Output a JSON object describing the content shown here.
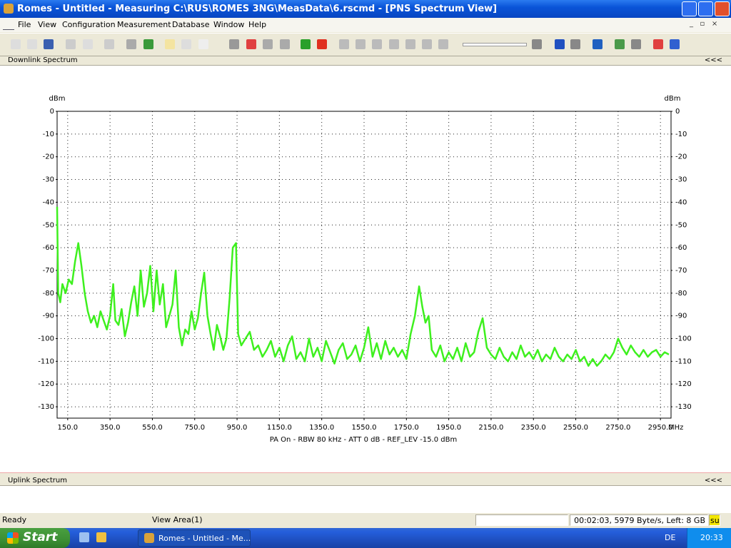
{
  "window": {
    "title": "Romes - Untitled - Measuring C:\\RUS\\ROMES 3NG\\MeasData\\6.rscmd - [PNS Spectrum View]"
  },
  "menu": [
    "File",
    "View",
    "Configuration",
    "Measurement",
    "Database",
    "Window",
    "Help"
  ],
  "panels": {
    "downlink": "Downlink Spectrum",
    "uplink": "Uplink Spectrum",
    "collapse": "<<<"
  },
  "chart_data": {
    "type": "line",
    "ylabel": "dBm",
    "y2label": "dBm",
    "xunit": "MHz",
    "xlabel": "PA On - RBW 80 kHz - ATT 0 dB - REF_LEV -15.0 dBm",
    "xlim": [
      100,
      3000
    ],
    "xticks": [
      {
        "value": 150,
        "label": "150.0"
      },
      {
        "value": 350,
        "label": "350.0"
      },
      {
        "value": 550,
        "label": "550.0"
      },
      {
        "value": 750,
        "label": "750.0"
      },
      {
        "value": 950,
        "label": "950.0"
      },
      {
        "value": 1150,
        "label": "1150.0"
      },
      {
        "value": 1350,
        "label": "1350.0"
      },
      {
        "value": 1550,
        "label": "1550.0"
      },
      {
        "value": 1750,
        "label": "1750.0"
      },
      {
        "value": 1950,
        "label": "1950.0"
      },
      {
        "value": 2150,
        "label": "2150.0"
      },
      {
        "value": 2350,
        "label": "2350.0"
      },
      {
        "value": 2550,
        "label": "2550.0"
      },
      {
        "value": 2750,
        "label": "2750.0"
      },
      {
        "value": 2950,
        "label": "2950.0"
      }
    ],
    "ylim": [
      -135,
      0
    ],
    "yticks": [
      0,
      -10,
      -20,
      -30,
      -40,
      -50,
      -60,
      -70,
      -80,
      -90,
      -100,
      -110,
      -120,
      -130
    ],
    "y2lim": [
      -135,
      0
    ],
    "y2ticks": [
      0,
      -10,
      -20,
      -30,
      -40,
      -50,
      -60,
      -70,
      -80,
      -90,
      -100,
      -110,
      -120,
      -130
    ],
    "grid": true,
    "color": "#3ef01e",
    "x": [
      100,
      105,
      115,
      125,
      140,
      155,
      170,
      185,
      200,
      215,
      230,
      245,
      260,
      275,
      290,
      305,
      320,
      335,
      350,
      365,
      375,
      390,
      405,
      420,
      435,
      450,
      465,
      480,
      495,
      510,
      525,
      540,
      555,
      570,
      585,
      600,
      615,
      630,
      645,
      660,
      675,
      690,
      705,
      720,
      735,
      750,
      765,
      780,
      795,
      810,
      825,
      840,
      855,
      870,
      885,
      900,
      915,
      930,
      945,
      955,
      970,
      990,
      1010,
      1030,
      1050,
      1070,
      1090,
      1110,
      1130,
      1150,
      1170,
      1190,
      1210,
      1230,
      1250,
      1270,
      1290,
      1310,
      1330,
      1350,
      1370,
      1390,
      1410,
      1430,
      1450,
      1470,
      1490,
      1510,
      1530,
      1550,
      1570,
      1590,
      1610,
      1630,
      1650,
      1670,
      1690,
      1710,
      1730,
      1750,
      1770,
      1790,
      1810,
      1825,
      1840,
      1855,
      1870,
      1890,
      1910,
      1930,
      1950,
      1970,
      1990,
      2010,
      2030,
      2050,
      2070,
      2090,
      2110,
      2130,
      2150,
      2170,
      2190,
      2210,
      2230,
      2250,
      2270,
      2290,
      2310,
      2330,
      2350,
      2370,
      2390,
      2410,
      2430,
      2450,
      2470,
      2490,
      2510,
      2530,
      2550,
      2570,
      2590,
      2610,
      2630,
      2650,
      2670,
      2690,
      2710,
      2730,
      2750,
      2770,
      2790,
      2810,
      2830,
      2850,
      2870,
      2890,
      2910,
      2930,
      2950,
      2970,
      2990
    ],
    "values": [
      -42,
      -80,
      -84,
      -76,
      -80,
      -74,
      -76,
      -66,
      -58,
      -68,
      -80,
      -88,
      -93,
      -90,
      -95,
      -88,
      -92,
      -96,
      -90,
      -76,
      -92,
      -94,
      -87,
      -99,
      -93,
      -84,
      -77,
      -90,
      -70,
      -86,
      -80,
      -68,
      -88,
      -70,
      -85,
      -76,
      -95,
      -90,
      -85,
      -70,
      -95,
      -103,
      -96,
      -98,
      -88,
      -96,
      -91,
      -80,
      -71,
      -90,
      -98,
      -105,
      -94,
      -99,
      -105,
      -100,
      -82,
      -60,
      -58,
      -98,
      -103,
      -100,
      -97,
      -105,
      -103,
      -108,
      -105,
      -101,
      -108,
      -104,
      -110,
      -103,
      -99,
      -109,
      -106,
      -110,
      -100,
      -108,
      -104,
      -110,
      -101,
      -106,
      -111,
      -105,
      -102,
      -109,
      -107,
      -103,
      -110,
      -104,
      -95,
      -108,
      -102,
      -109,
      -101,
      -107,
      -104,
      -108,
      -105,
      -109,
      -98,
      -90,
      -77,
      -86,
      -93,
      -90,
      -105,
      -108,
      -103,
      -110,
      -106,
      -109,
      -104,
      -110,
      -102,
      -108,
      -106,
      -97,
      -91,
      -104,
      -107,
      -109,
      -104,
      -108,
      -110,
      -106,
      -109,
      -103,
      -108,
      -106,
      -109,
      -105,
      -110,
      -107,
      -109,
      -104,
      -108,
      -110,
      -107,
      -109,
      -105,
      -110,
      -108,
      -112,
      -109,
      -112,
      -110,
      -107,
      -109,
      -106,
      -100,
      -104,
      -107,
      -103,
      -106,
      -108,
      -105,
      -108,
      -106,
      -105,
      -108,
      -106,
      -107
    ]
  },
  "status_bar": {
    "ready": "Ready",
    "view_area": "View Area(1)",
    "info": "00:02:03, 5979 Byte/s, Left: 8 GB",
    "user": "su"
  },
  "taskbar": {
    "start": "Start",
    "task": "Romes - Untitled - Me...",
    "language": "DE",
    "clock": "20:33"
  }
}
